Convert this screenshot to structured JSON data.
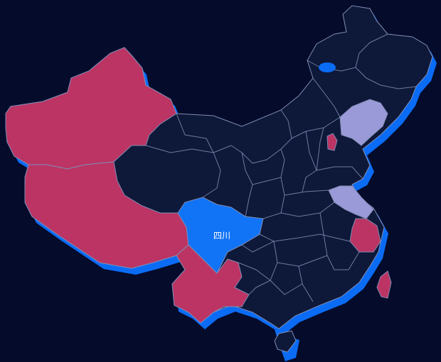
{
  "map": {
    "background": "#050b2b",
    "shadow_color": "#0a6cf5",
    "default_fill": "#0e1838",
    "border_color": "#7f8cb5",
    "highlight_label": "四川",
    "regions": [
      {
        "name": "xinjiang",
        "category": "group-a",
        "color": "#bb3463"
      },
      {
        "name": "xizang",
        "category": "group-a",
        "color": "#bb3463"
      },
      {
        "name": "yunnan",
        "category": "group-a",
        "color": "#bb3463"
      },
      {
        "name": "zhejiang",
        "category": "group-a",
        "color": "#bb3463"
      },
      {
        "name": "taiwan",
        "category": "group-a",
        "color": "#bb3463"
      },
      {
        "name": "beijing",
        "category": "group-a",
        "color": "#bb3463"
      },
      {
        "name": "liaoning",
        "category": "group-b",
        "color": "#9b9ad8"
      },
      {
        "name": "jiangsu",
        "category": "group-b",
        "color": "#9b9ad8"
      },
      {
        "name": "sichuan",
        "category": "selected",
        "color": "#1173f5"
      }
    ]
  }
}
